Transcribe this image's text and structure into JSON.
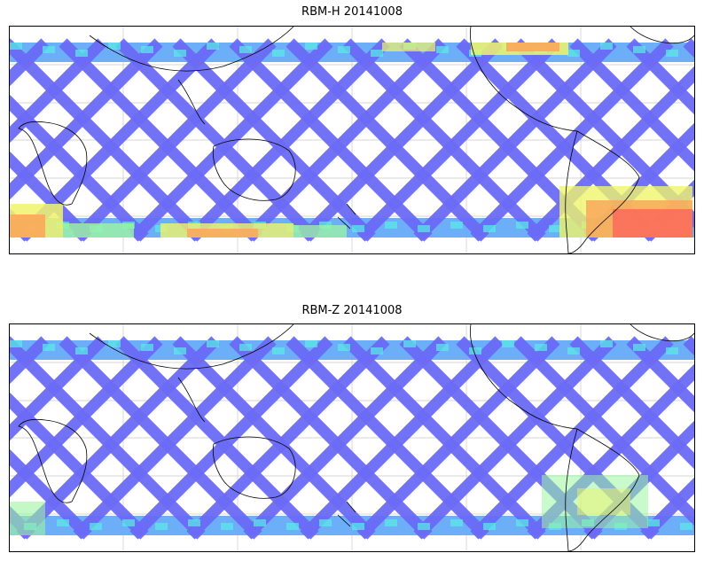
{
  "panels": [
    {
      "title": "RBM-H 20141008",
      "southern_hotspots": true
    },
    {
      "title": "RBM-Z 20141008",
      "southern_hotspots": false
    }
  ],
  "colors": {
    "low": "#6a6af5",
    "mid": "#5fa8f7",
    "cyan": "#5be7e7",
    "green": "#9df5a0",
    "yellow": "#f0f46a",
    "orange": "#f9a85a",
    "red": "#fa6a5a",
    "coast": "#000000",
    "grid": "#c8c8c8"
  }
}
